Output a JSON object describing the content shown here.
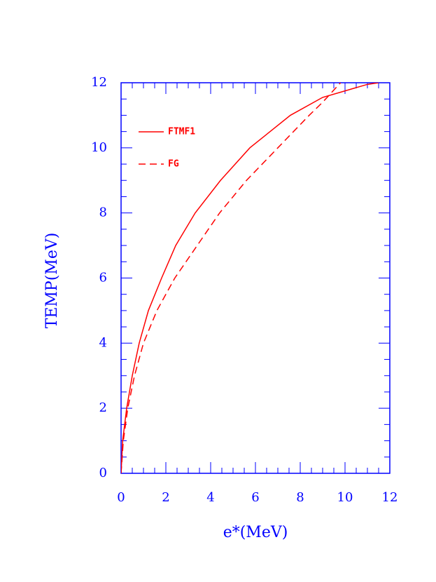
{
  "chart_data": {
    "type": "line",
    "x_label": "e*(MeV)",
    "y_label": "TEMP(MeV)",
    "xlim": [
      0,
      12
    ],
    "ylim": [
      0,
      12
    ],
    "xticks": [
      0,
      2,
      4,
      6,
      8,
      10,
      12
    ],
    "yticks": [
      0,
      2,
      4,
      6,
      8,
      10,
      12
    ],
    "axis_color": "#0000ff",
    "series": [
      {
        "name": "FTMF1",
        "color": "#ff0000",
        "dash": "solid",
        "x": [
          0,
          0.07,
          0.25,
          0.5,
          0.81,
          1.22,
          1.81,
          2.44,
          3.31,
          4.44,
          5.75,
          7.56,
          9.0,
          10.0,
          11.0,
          11.5
        ],
        "y": [
          0,
          1,
          2,
          3,
          4,
          5,
          6,
          7,
          8,
          9,
          10,
          11,
          11.55,
          11.75,
          11.95,
          12
        ]
      },
      {
        "name": "FG",
        "color": "#ff0000",
        "dash": "dashed",
        "x": [
          0,
          0.1,
          0.3,
          0.6,
          1.0,
          1.6,
          2.4,
          3.4,
          4.4,
          5.6,
          7.0,
          8.4,
          9.0,
          9.8
        ],
        "y": [
          0,
          1,
          2,
          3,
          4,
          5,
          6,
          7,
          8,
          9,
          10,
          11,
          11.4,
          12
        ]
      }
    ]
  }
}
